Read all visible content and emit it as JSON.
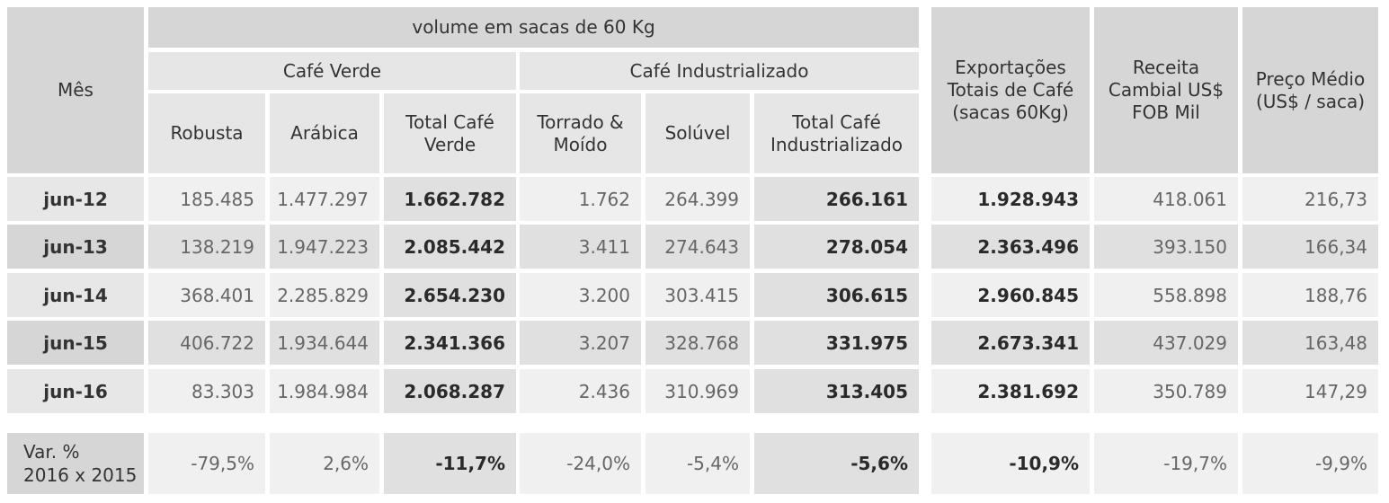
{
  "header": {
    "mes": "Mês",
    "volume": "volume em sacas de 60 Kg",
    "cafe_verde": "Café Verde",
    "cafe_industrializado": "Café Industrializado",
    "robusta": "Robusta",
    "arabica": "Arábica",
    "total_verde": "Total Café Verde",
    "torrado": "Torrado & Moído",
    "soluvel": "Solúvel",
    "total_industrializado": "Total Café Industrializado",
    "exportacoes": "Exportações Totais de Café (sacas 60Kg)",
    "receita": "Receita Cambial US$ FOB Mil",
    "preco": "Preço Médio (US$ / saca)"
  },
  "rows": [
    {
      "mes": "jun-12",
      "robusta": "185.485",
      "arabica": "1.477.297",
      "total_verde": "1.662.782",
      "torrado": "1.762",
      "soluvel": "264.399",
      "total_ind": "266.161",
      "export": "1.928.943",
      "receita": "418.061",
      "preco": "216,73"
    },
    {
      "mes": "jun-13",
      "robusta": "138.219",
      "arabica": "1.947.223",
      "total_verde": "2.085.442",
      "torrado": "3.411",
      "soluvel": "274.643",
      "total_ind": "278.054",
      "export": "2.363.496",
      "receita": "393.150",
      "preco": "166,34"
    },
    {
      "mes": "jun-14",
      "robusta": "368.401",
      "arabica": "2.285.829",
      "total_verde": "2.654.230",
      "torrado": "3.200",
      "soluvel": "303.415",
      "total_ind": "306.615",
      "export": "2.960.845",
      "receita": "558.898",
      "preco": "188,76"
    },
    {
      "mes": "jun-15",
      "robusta": "406.722",
      "arabica": "1.934.644",
      "total_verde": "2.341.366",
      "torrado": "3.207",
      "soluvel": "328.768",
      "total_ind": "331.975",
      "export": "2.673.341",
      "receita": "437.029",
      "preco": "163,48"
    },
    {
      "mes": "jun-16",
      "robusta": "83.303",
      "arabica": "1.984.984",
      "total_verde": "2.068.287",
      "torrado": "2.436",
      "soluvel": "310.969",
      "total_ind": "313.405",
      "export": "2.381.692",
      "receita": "350.789",
      "preco": "147,29"
    }
  ],
  "variation": {
    "label_line1": "Var. %",
    "label_line2": "2016 x 2015",
    "robusta": "-79,5%",
    "arabica": "2,6%",
    "total_verde": "-11,7%",
    "torrado": "-24,0%",
    "soluvel": "-5,4%",
    "total_ind": "-5,6%",
    "export": "-10,9%",
    "receita": "-19,7%",
    "preco": "-9,9%"
  }
}
